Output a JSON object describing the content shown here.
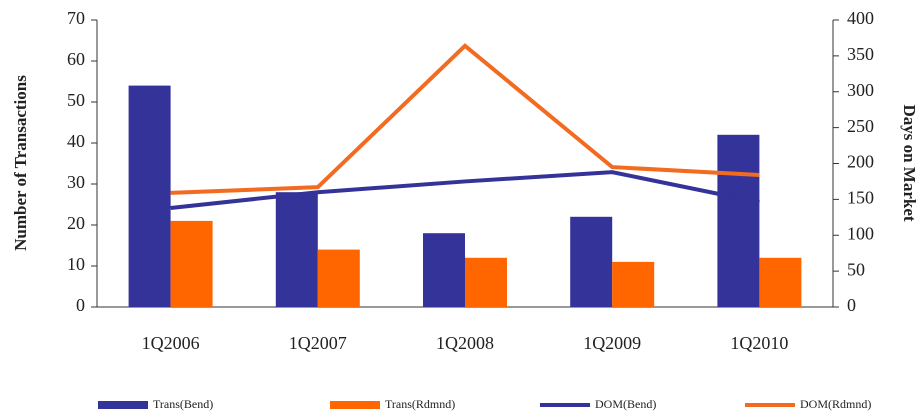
{
  "chart_data": {
    "type": "bar-line",
    "categories": [
      "1Q2006",
      "1Q2007",
      "1Q2008",
      "1Q2009",
      "1Q2010"
    ],
    "ylabel": "Number of Transactions",
    "y2label": "Days on Market",
    "ylim": [
      0,
      70
    ],
    "yticks": [
      0,
      10,
      20,
      30,
      40,
      50,
      60,
      70
    ],
    "y2lim": [
      0,
      400
    ],
    "y2ticks": [
      0,
      50,
      100,
      150,
      200,
      250,
      300,
      350,
      400
    ],
    "series": [
      {
        "name": "Trans(Bend)",
        "type": "bar",
        "color": "#333399",
        "values": [
          54,
          28,
          18,
          22,
          42
        ]
      },
      {
        "name": "Trans(Rdmnd)",
        "type": "bar",
        "color": "#ff6600",
        "values": [
          21,
          14,
          12,
          11,
          12
        ]
      },
      {
        "name": "DOM(Bend)",
        "type": "line",
        "axis": "y2",
        "color": "#333399",
        "values": [
          138,
          160,
          175,
          188,
          146
        ]
      },
      {
        "name": "DOM(Rdmnd)",
        "type": "line",
        "axis": "y2",
        "color": "#f26b21",
        "values": [
          159,
          167,
          364,
          195,
          184
        ]
      }
    ]
  }
}
